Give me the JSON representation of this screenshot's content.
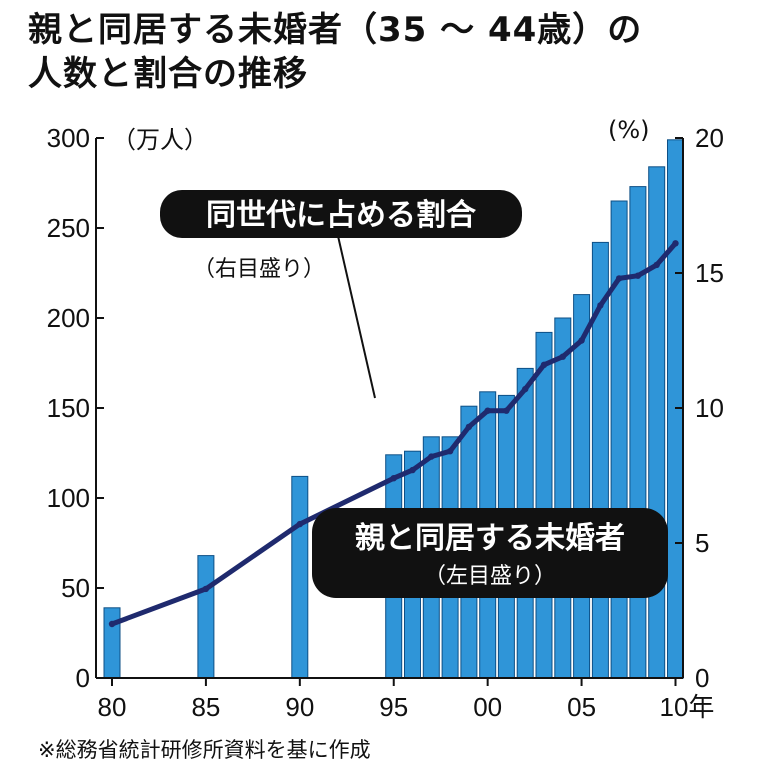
{
  "chart_data": {
    "type": "bar",
    "title_line1": "親と同居する未婚者（35 ～ 44歳）の",
    "title_line2": "人数と割合の推移",
    "y_left_unit": "（万人）",
    "y_right_unit": "(%)",
    "x_unit": "年",
    "ylim_left": [
      0,
      300
    ],
    "ylim_right": [
      0,
      20
    ],
    "left_ticks": [
      0,
      50,
      100,
      150,
      200,
      250,
      300
    ],
    "right_ticks": [
      0,
      5,
      10,
      15,
      20
    ],
    "x_tick_labels": [
      {
        "year": 1980,
        "label": "80"
      },
      {
        "year": 1985,
        "label": "85"
      },
      {
        "year": 1990,
        "label": "90"
      },
      {
        "year": 1995,
        "label": "95"
      },
      {
        "year": 2000,
        "label": "00"
      },
      {
        "year": 2005,
        "label": "05"
      },
      {
        "year": 2010,
        "label": "10"
      }
    ],
    "series": [
      {
        "name": "親と同居する未婚者",
        "axis_note": "（左目盛り）",
        "kind": "bar",
        "color": "#2f95d8",
        "x": [
          1980,
          1985,
          1990,
          1995,
          1996,
          1997,
          1998,
          1999,
          2000,
          2001,
          2002,
          2003,
          2004,
          2005,
          2006,
          2007,
          2008,
          2009,
          2010
        ],
        "values": [
          39,
          68,
          112,
          124,
          126,
          134,
          134,
          151,
          159,
          157,
          172,
          192,
          200,
          213,
          242,
          265,
          273,
          284,
          299
        ]
      },
      {
        "name": "同世代に占める割合",
        "axis_note": "（右目盛り）",
        "kind": "line",
        "color": "#1f2a6e",
        "x": [
          1980,
          1985,
          1990,
          1995,
          1996,
          1997,
          1998,
          1999,
          2000,
          2001,
          2002,
          2003,
          2004,
          2005,
          2006,
          2007,
          2008,
          2009,
          2010
        ],
        "values": [
          2.0,
          3.3,
          5.7,
          7.4,
          7.7,
          8.2,
          8.4,
          9.3,
          9.9,
          9.9,
          10.7,
          11.6,
          11.9,
          12.5,
          13.8,
          14.8,
          14.9,
          15.3,
          16.1
        ]
      }
    ]
  },
  "source_note": "※総務省統計研修所資料を基に作成"
}
